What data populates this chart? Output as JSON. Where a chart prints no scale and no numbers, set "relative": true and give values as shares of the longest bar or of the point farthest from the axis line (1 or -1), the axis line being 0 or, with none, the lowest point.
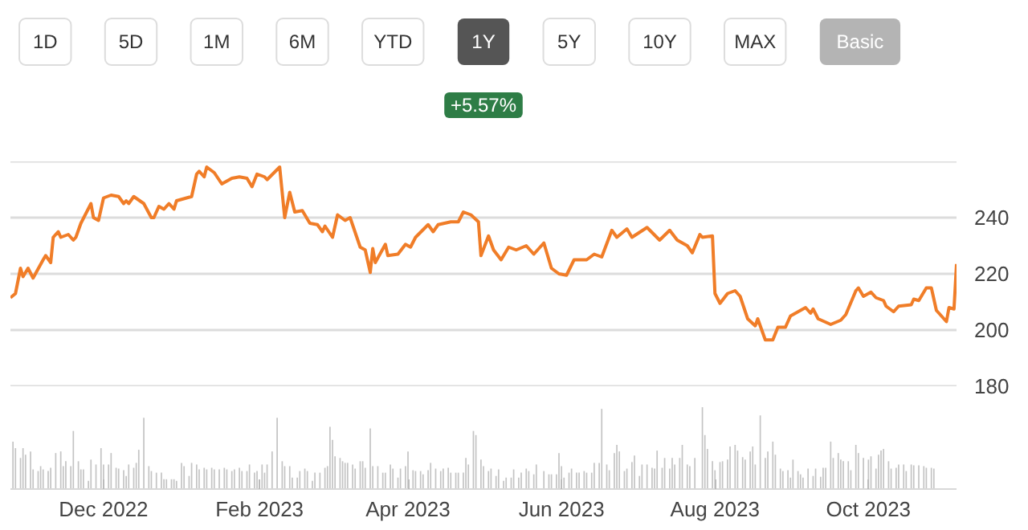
{
  "chart_data": [
    {
      "type": "line",
      "color": "#f07d28",
      "xlim": [
        "2022-10-25",
        "2023-11-05"
      ],
      "ylim": [
        180,
        260
      ],
      "yticks": [
        180,
        200,
        220,
        240,
        {
          "value": 260,
          "label": null
        }
      ],
      "grid": "y",
      "tick_labels": "y",
      "annotations": [
        "1D",
        "5D",
        "1M",
        "6M",
        "YTD",
        "1Y",
        "5Y",
        "10Y",
        "MAX",
        "Basic",
        "+5.57%"
      ],
      "x": [
        "2022-10-25",
        "2022-10-27",
        "2022-10-29",
        "2022-10-30",
        "2022-11-01",
        "2022-11-03",
        "2022-11-07",
        "2022-11-08",
        "2022-11-10",
        "2022-11-11",
        "2022-11-13",
        "2022-11-14",
        "2022-11-17",
        "2022-11-19",
        "2022-11-20",
        "2022-11-22",
        "2022-11-26",
        "2022-11-27",
        "2022-11-29",
        "2022-12-01",
        "2022-12-04",
        "2022-12-07",
        "2022-12-09",
        "2022-12-10",
        "2022-12-11",
        "2022-12-13",
        "2022-12-17",
        "2022-12-20",
        "2022-12-21",
        "2022-12-23",
        "2022-12-25",
        "2022-12-27",
        "2022-12-29",
        "2022-12-30",
        "2023-01-03",
        "2023-01-05",
        "2023-01-07",
        "2023-01-08",
        "2023-01-10",
        "2023-01-11",
        "2023-01-14",
        "2023-01-17",
        "2023-01-21",
        "2023-01-24",
        "2023-01-27",
        "2023-01-29",
        "2023-01-31",
        "2023-02-03",
        "2023-02-04",
        "2023-02-09",
        "2023-02-11",
        "2023-02-13",
        "2023-02-15",
        "2023-02-18",
        "2023-02-21",
        "2023-02-24",
        "2023-02-26",
        "2023-02-27",
        "2023-03-02",
        "2023-03-04",
        "2023-03-07",
        "2023-03-09",
        "2023-03-13",
        "2023-03-15",
        "2023-03-17",
        "2023-03-18",
        "2023-03-19",
        "2023-03-23",
        "2023-03-24",
        "2023-03-28",
        "2023-03-31",
        "2023-04-02",
        "2023-04-04",
        "2023-04-09",
        "2023-04-11",
        "2023-04-13",
        "2023-04-18",
        "2023-04-21",
        "2023-04-23",
        "2023-04-26",
        "2023-04-29",
        "2023-04-30",
        "2023-05-03",
        "2023-05-05",
        "2023-05-08",
        "2023-05-11",
        "2023-05-14",
        "2023-05-18",
        "2023-05-21",
        "2023-05-25",
        "2023-05-28",
        "2023-05-31",
        "2023-06-03",
        "2023-06-06",
        "2023-06-11",
        "2023-06-14",
        "2023-06-17",
        "2023-06-21",
        "2023-06-23",
        "2023-06-27",
        "2023-06-29",
        "2023-07-05",
        "2023-07-10",
        "2023-07-14",
        "2023-07-17",
        "2023-07-21",
        "2023-07-23",
        "2023-07-26",
        "2023-07-27",
        "2023-07-31",
        "2023-08-01",
        "2023-08-03",
        "2023-08-06",
        "2023-08-09",
        "2023-08-11",
        "2023-08-14",
        "2023-08-17",
        "2023-08-18",
        "2023-08-21",
        "2023-08-24",
        "2023-08-26",
        "2023-08-29",
        "2023-08-31",
        "2023-09-06",
        "2023-09-08",
        "2023-09-09",
        "2023-09-11",
        "2023-09-16",
        "2023-09-20",
        "2023-09-22",
        "2023-09-26",
        "2023-09-27",
        "2023-09-29",
        "2023-10-02",
        "2023-10-04",
        "2023-10-07",
        "2023-10-08",
        "2023-10-11",
        "2023-10-13",
        "2023-10-18",
        "2023-10-19",
        "2023-10-21",
        "2023-10-24",
        "2023-10-26",
        "2023-10-28",
        "2023-11-01",
        "2023-11-02",
        "2023-11-04",
        "2023-11-05"
      ],
      "values": [
        211.5,
        213,
        222,
        219,
        222,
        218.5,
        225,
        226.5,
        224,
        233,
        235,
        233,
        234,
        232,
        233,
        238,
        245,
        240,
        239,
        247,
        248,
        247.5,
        245,
        246,
        245,
        247.5,
        245,
        240,
        240,
        244,
        243,
        245,
        243,
        246,
        247,
        247.5,
        255.5,
        256.5,
        254.5,
        258,
        256,
        252,
        254,
        254.5,
        254,
        251,
        255.5,
        254.5,
        253.5,
        258,
        240,
        249,
        242,
        242.5,
        238,
        237.5,
        235,
        237,
        233,
        241,
        239,
        240,
        229.5,
        228.5,
        220.5,
        229,
        224,
        230.5,
        226.5,
        227,
        230.5,
        229.5,
        233,
        237.5,
        235,
        237.5,
        238.5,
        238.5,
        242,
        241,
        238.5,
        226.5,
        233.5,
        228.5,
        225,
        229.5,
        228.5,
        230,
        227,
        231,
        222,
        220,
        219.5,
        225,
        225,
        227,
        226,
        235.5,
        233,
        236,
        233,
        236.5,
        232,
        235.5,
        232,
        230,
        227.5,
        234,
        233,
        233.5,
        213,
        209.5,
        213,
        214,
        212,
        204,
        201.5,
        204,
        196.5,
        196.5,
        201,
        201,
        205,
        208,
        206,
        207.5,
        204,
        202,
        203.5,
        205.5,
        214,
        215,
        212,
        213.5,
        211.5,
        210.5,
        208.5,
        206.5,
        208.5,
        209,
        211,
        210.5,
        215,
        215,
        207,
        203,
        208,
        207.5,
        223.5
      ]
    },
    {
      "type": "bar",
      "relative": true,
      "color": "#c4c4c4",
      "xlim": [
        "2022-10-25",
        "2023-11-05"
      ],
      "xticks": [
        {
          "value": "2022-12-01",
          "label": "Dec 2022"
        },
        {
          "value": "2023-02-01",
          "label": "Feb 2023"
        },
        {
          "value": "2023-04-01",
          "label": "Apr 2023"
        },
        {
          "value": "2023-06-01",
          "label": "Jun 2023"
        },
        {
          "value": "2023-08-01",
          "label": "Aug 2023"
        },
        {
          "value": "2023-10-01",
          "label": "Oct 2023"
        }
      ],
      "tick_labels": "x",
      "x": [
        "2022-10-26",
        "2022-10-27",
        "2022-10-29",
        "2022-10-30",
        "2022-10-31",
        "2022-11-02",
        "2022-11-03",
        "2022-11-05",
        "2022-11-06",
        "2022-11-07",
        "2022-11-09",
        "2022-11-10",
        "2022-11-12",
        "2022-11-14",
        "2022-11-15",
        "2022-11-16",
        "2022-11-18",
        "2022-11-19",
        "2022-11-21",
        "2022-11-22",
        "2022-11-23",
        "2022-11-25",
        "2022-11-26",
        "2022-11-28",
        "2022-11-30",
        "2022-12-01",
        "2022-12-03",
        "2022-12-04",
        "2022-12-06",
        "2022-12-07",
        "2022-12-09",
        "2022-12-10",
        "2022-12-11",
        "2022-12-13",
        "2022-12-14",
        "2022-12-15",
        "2022-12-17",
        "2022-12-19",
        "2022-12-20",
        "2022-12-22",
        "2022-12-24",
        "2022-12-25",
        "2022-12-26",
        "2022-12-28",
        "2022-12-29",
        "2022-12-30",
        "2023-01-01",
        "2023-01-02",
        "2023-01-04",
        "2023-01-05",
        "2023-01-07",
        "2023-01-08",
        "2023-01-10",
        "2023-01-11",
        "2023-01-13",
        "2023-01-14",
        "2023-01-16",
        "2023-01-18",
        "2023-01-19",
        "2023-01-21",
        "2023-01-22",
        "2023-01-24",
        "2023-01-25",
        "2023-01-27",
        "2023-01-28",
        "2023-01-30",
        "2023-01-31",
        "2023-02-02",
        "2023-02-03",
        "2023-02-04",
        "2023-02-06",
        "2023-02-08",
        "2023-02-10",
        "2023-02-11",
        "2023-02-13",
        "2023-02-14",
        "2023-02-16",
        "2023-02-17",
        "2023-02-19",
        "2023-02-20",
        "2023-02-22",
        "2023-02-23",
        "2023-02-25",
        "2023-02-27",
        "2023-02-28",
        "2023-03-01",
        "2023-03-02",
        "2023-03-03",
        "2023-03-05",
        "2023-03-06",
        "2023-03-07",
        "2023-03-08",
        "2023-03-10",
        "2023-03-11",
        "2023-03-13",
        "2023-03-14",
        "2023-03-15",
        "2023-03-17",
        "2023-03-18",
        "2023-03-20",
        "2023-03-22",
        "2023-03-23",
        "2023-03-25",
        "2023-03-26",
        "2023-03-28",
        "2023-03-29",
        "2023-03-31",
        "2023-04-01",
        "2023-04-03",
        "2023-04-04",
        "2023-04-06",
        "2023-04-07",
        "2023-04-09",
        "2023-04-10",
        "2023-04-12",
        "2023-04-14",
        "2023-04-15",
        "2023-04-17",
        "2023-04-18",
        "2023-04-20",
        "2023-04-21",
        "2023-04-23",
        "2023-04-24",
        "2023-04-25",
        "2023-04-27",
        "2023-04-28",
        "2023-04-30",
        "2023-05-01",
        "2023-05-03",
        "2023-05-04",
        "2023-05-06",
        "2023-05-07",
        "2023-05-09",
        "2023-05-10",
        "2023-05-12",
        "2023-05-13",
        "2023-05-15",
        "2023-05-16",
        "2023-05-18",
        "2023-05-19",
        "2023-05-21",
        "2023-05-22",
        "2023-05-25",
        "2023-05-27",
        "2023-05-28",
        "2023-05-30",
        "2023-05-31",
        "2023-06-01",
        "2023-06-02",
        "2023-06-04",
        "2023-06-05",
        "2023-06-07",
        "2023-06-08",
        "2023-06-10",
        "2023-06-11",
        "2023-06-13",
        "2023-06-14",
        "2023-06-16",
        "2023-06-17",
        "2023-06-19",
        "2023-06-20",
        "2023-06-22",
        "2023-06-23",
        "2023-06-24",
        "2023-06-26",
        "2023-06-27",
        "2023-06-29",
        "2023-06-30",
        "2023-07-02",
        "2023-07-03",
        "2023-07-05",
        "2023-07-07",
        "2023-07-08",
        "2023-07-09",
        "2023-07-11",
        "2023-07-12",
        "2023-07-14",
        "2023-07-15",
        "2023-07-16",
        "2023-07-18",
        "2023-07-19",
        "2023-07-21",
        "2023-07-22",
        "2023-07-24",
        "2023-07-27",
        "2023-07-28",
        "2023-07-29",
        "2023-07-31",
        "2023-08-01",
        "2023-08-03",
        "2023-08-04",
        "2023-08-06",
        "2023-08-07",
        "2023-08-09",
        "2023-08-10",
        "2023-08-12",
        "2023-08-13",
        "2023-08-15",
        "2023-08-16",
        "2023-08-17",
        "2023-08-19",
        "2023-08-21",
        "2023-08-22",
        "2023-08-24",
        "2023-08-25",
        "2023-08-27",
        "2023-08-28",
        "2023-08-30",
        "2023-08-31",
        "2023-09-01",
        "2023-09-03",
        "2023-09-04",
        "2023-09-05",
        "2023-09-07",
        "2023-09-09",
        "2023-09-10",
        "2023-09-12",
        "2023-09-13",
        "2023-09-14",
        "2023-09-16",
        "2023-09-17",
        "2023-09-19",
        "2023-09-20",
        "2023-09-21",
        "2023-09-23",
        "2023-09-24",
        "2023-09-26",
        "2023-09-27",
        "2023-09-29",
        "2023-10-01",
        "2023-10-02",
        "2023-10-04",
        "2023-10-05",
        "2023-10-06",
        "2023-10-07",
        "2023-10-09",
        "2023-10-10",
        "2023-10-12",
        "2023-10-13",
        "2023-10-15",
        "2023-10-16",
        "2023-10-18",
        "2023-10-19",
        "2023-10-21",
        "2023-10-23",
        "2023-10-24",
        "2023-10-26",
        "2023-10-27"
      ],
      "values": [
        0.58,
        0.5,
        0.38,
        0.5,
        0.42,
        0.46,
        0.24,
        0.22,
        0.28,
        0.24,
        0.22,
        0.26,
        0.44,
        0.46,
        0.28,
        0.34,
        0.28,
        0.71,
        0.34,
        0.24,
        0.24,
        0.1,
        0.36,
        0.3,
        0.5,
        0.3,
        0.3,
        0.44,
        0.26,
        0.25,
        0.23,
        0.16,
        0.3,
        0.26,
        0.32,
        0.48,
        0.87,
        0.28,
        0.22,
        0.2,
        0.2,
        0.12,
        0.12,
        0.12,
        0.12,
        0.1,
        0.32,
        0.28,
        0.16,
        0.32,
        0.3,
        0.24,
        0.26,
        0.24,
        0.26,
        0.24,
        0.24,
        0.26,
        0.24,
        0.22,
        0.24,
        0.26,
        0.22,
        0.22,
        0.3,
        0.2,
        0.22,
        0.3,
        0.2,
        0.3,
        0.46,
        0.87,
        0.34,
        0.28,
        0.28,
        0.14,
        0.14,
        0.22,
        0.25,
        0.22,
        0.1,
        0.2,
        0.2,
        0.26,
        0.28,
        0.76,
        0.6,
        0.4,
        0.38,
        0.34,
        0.32,
        0.32,
        0.3,
        0.25,
        0.34,
        0.34,
        0.26,
        0.74,
        0.28,
        0.28,
        0.2,
        0.2,
        0.3,
        0.25,
        0.14,
        0.25,
        0.28,
        0.46,
        0.23,
        0.22,
        0.22,
        0.18,
        0.23,
        0.32,
        0.25,
        0.22,
        0.25,
        0.26,
        0.2,
        0.2,
        0.2,
        0.2,
        0.38,
        0.3,
        0.71,
        0.66,
        0.36,
        0.28,
        0.22,
        0.25,
        0.16,
        0.24,
        0.1,
        0.14,
        0.14,
        0.24,
        0.14,
        0.2,
        0.25,
        0.22,
        0.18,
        0.3,
        0.22,
        0.18,
        0.18,
        0.18,
        0.44,
        0.28,
        0.14,
        0.2,
        0.25,
        0.2,
        0.2,
        0.22,
        0.2,
        0.2,
        0.32,
        0.32,
        0.98,
        0.3,
        0.23,
        0.44,
        0.54,
        0.46,
        0.22,
        0.25,
        0.33,
        0.41,
        0.16,
        0.3,
        0.3,
        0.26,
        0.25,
        0.47,
        0.26,
        0.38,
        0.25,
        0.38,
        0.3,
        0.38,
        0.54,
        0.3,
        0.28,
        0.38,
        1,
        0.66,
        0.49,
        0.34,
        0.23,
        0.33,
        0.34,
        0.36,
        0.52,
        0.54,
        0.47,
        0.39,
        0.36,
        0.46,
        0.52,
        0.3,
        0.9,
        0.38,
        0.46,
        0.58,
        0.42,
        0.25,
        0.22,
        0.23,
        0.14,
        0.36,
        0.22,
        0.18,
        0.14,
        0.25,
        0.16,
        0.25,
        0.15,
        0.26,
        0.26,
        0.58,
        0.38,
        0.44,
        0.36,
        0.34,
        0.34,
        0.23,
        0.54,
        0.44,
        0.38,
        0.36,
        0.4,
        0.25,
        0.42,
        0.47,
        0.49,
        0.34,
        0.25,
        0.26,
        0.3,
        0.3,
        0.22,
        0.3,
        0.29,
        0.29,
        0.28,
        0.26,
        0.26,
        0.25
      ]
    }
  ]
}
